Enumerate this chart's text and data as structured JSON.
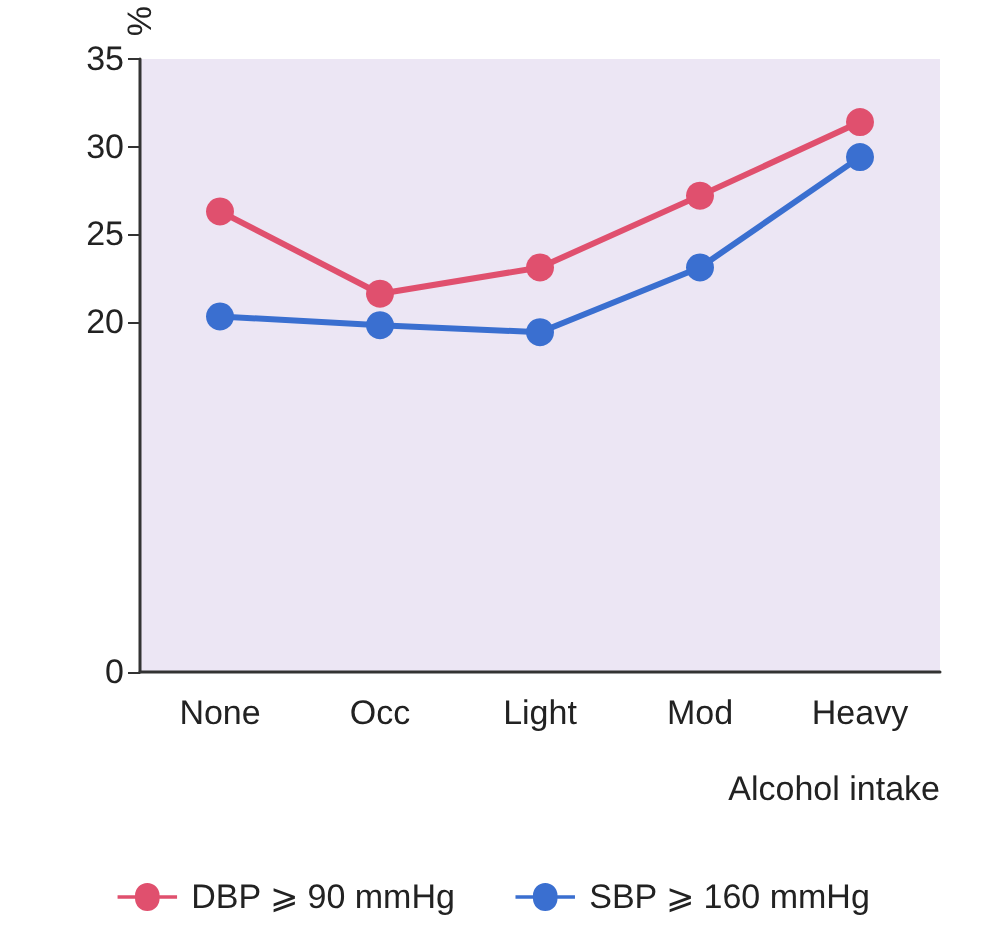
{
  "chart_data": {
    "type": "line",
    "xlabel": "Alcohol intake",
    "ylabel": "%",
    "categories": [
      "None",
      "Occ",
      "Light",
      "Mod",
      "Heavy"
    ],
    "series": [
      {
        "name": "DBP ⩾ 90 mmHg",
        "color": "#e0506e",
        "values": [
          26.3,
          21.6,
          23.1,
          27.2,
          31.4
        ]
      },
      {
        "name": "SBP ⩾ 160 mmHg",
        "color": "#3a6fd0",
        "values": [
          20.3,
          19.8,
          19.4,
          23.1,
          29.4
        ]
      }
    ],
    "ylim": [
      0,
      35
    ],
    "yticks": [
      0,
      20,
      25,
      30,
      35
    ],
    "grid": false,
    "legend": "bottom",
    "marker": "circle",
    "line_style": "solid"
  }
}
